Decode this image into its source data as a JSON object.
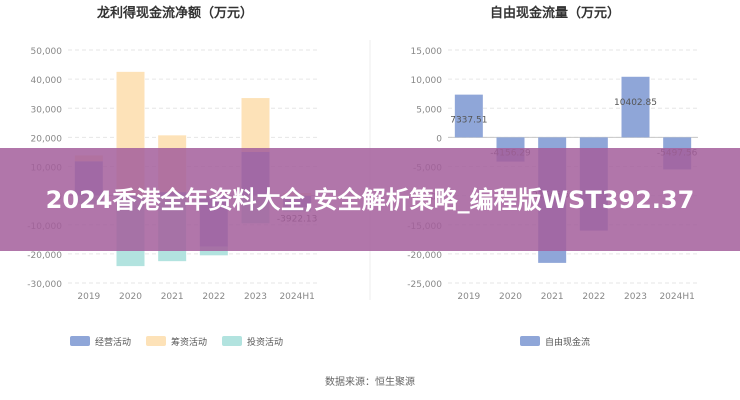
{
  "chart_data": [
    {
      "type": "bar",
      "title": "龙利得现金流净额（万元）",
      "categories": [
        "2019",
        "2020",
        "2021",
        "2022",
        "2023",
        "2024H1"
      ],
      "ylim": [
        -30000,
        50000
      ],
      "yticks": [
        "50,000",
        "40,000",
        "30,000",
        "20,000",
        "10,000",
        "0",
        "-10,000",
        "-20,000",
        "-30,000"
      ],
      "grid": true,
      "legend_position": "bottom",
      "series": [
        {
          "name": "经营活动",
          "color": "#8fa6d8",
          "values": [
            11800,
            -700,
            1200,
            -17500,
            15000,
            -3922.13
          ]
        },
        {
          "name": "筹资活动",
          "color": "#fde2b8",
          "values": [
            2000,
            42500,
            19500,
            400,
            18500,
            900
          ]
        },
        {
          "name": "投资活动",
          "color": "#b2e3df",
          "values": [
            -2800,
            -23500,
            -22500,
            -3000,
            -9500,
            -1500
          ]
        }
      ],
      "data_labels": [
        {
          "category": "2024H1",
          "text": "-3922.13"
        }
      ]
    },
    {
      "type": "bar",
      "title": "自由现金流量（万元）",
      "categories": [
        "2019",
        "2020",
        "2021",
        "2022",
        "2023",
        "2024H1"
      ],
      "ylim": [
        -25000,
        15000
      ],
      "yticks": [
        "15,000",
        "10,000",
        "5,000",
        "0",
        "-5,000",
        "-10,000",
        "-15,000",
        "-20,000",
        "-25,000"
      ],
      "grid": true,
      "legend_position": "bottom",
      "series": [
        {
          "name": "自由现金流",
          "color": "#8fa6d8",
          "values": [
            7337.51,
            -4156.29,
            -21545.59,
            -16000,
            10402.85,
            -5497.56
          ]
        }
      ],
      "data_labels": [
        {
          "category": "2019",
          "text": "7337.51"
        },
        {
          "category": "2020",
          "text": "-4156.29"
        },
        {
          "category": "2021",
          "text": "-21545.59"
        },
        {
          "category": "2023",
          "text": "10402.85"
        },
        {
          "category": "2024H1",
          "text": "-5497.56"
        }
      ]
    }
  ],
  "source": "数据来源：恒生聚源",
  "banner": "2024香港全年资料大全,安全解析策略_编程版WST392.37"
}
